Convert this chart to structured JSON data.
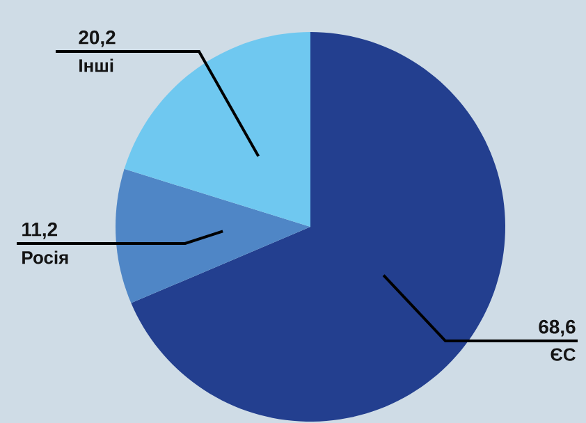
{
  "chart_data": {
    "type": "pie",
    "categories": [
      "ЄС",
      "Росія",
      "Інші"
    ],
    "values": [
      68.6,
      11.2,
      20.2
    ],
    "value_labels": [
      "68,6",
      "11,2",
      "20,2"
    ],
    "colors": [
      "#233f8f",
      "#4f86c6",
      "#6fc8f0"
    ]
  }
}
